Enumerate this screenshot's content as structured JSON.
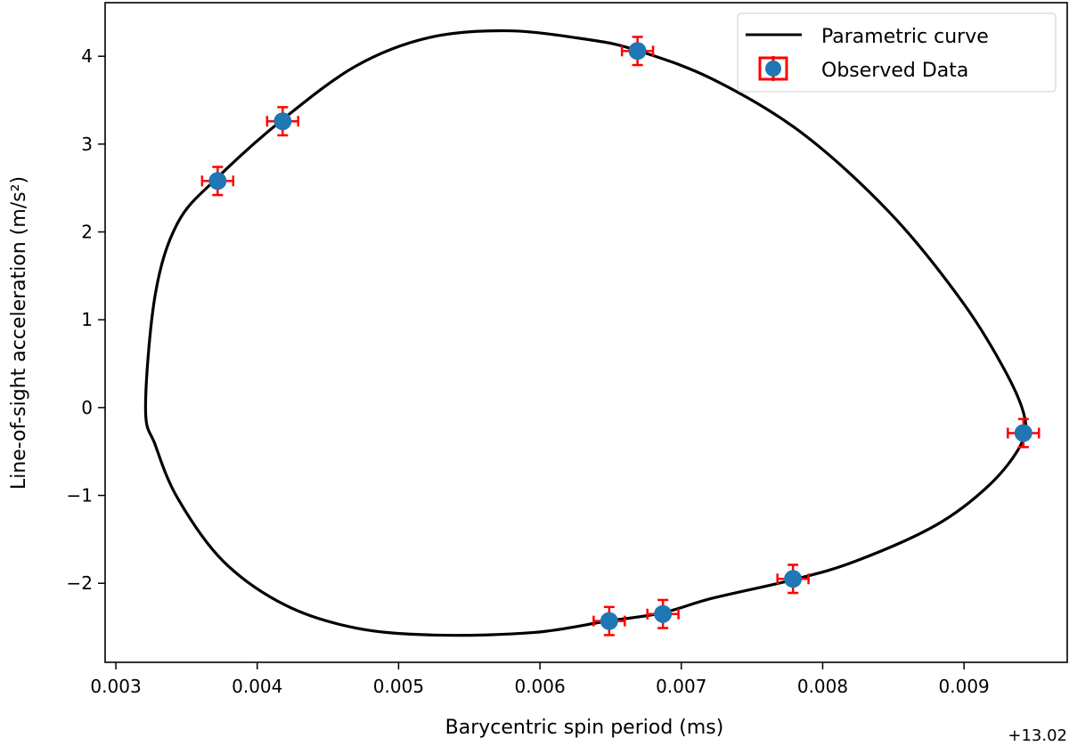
{
  "chart_data": {
    "type": "scatter",
    "title": "",
    "xlabel": "Barycentric spin period (ms)",
    "ylabel": "Line-of-sight acceleration (m/s²)",
    "x_offset_label": "+13.02",
    "xlim": [
      0.002924,
      0.00973
    ],
    "ylim": [
      -2.9,
      4.61
    ],
    "x_ticks": [
      0.003,
      0.004,
      0.005,
      0.006,
      0.007,
      0.008,
      0.009
    ],
    "x_tick_labels": [
      "0.003",
      "0.004",
      "0.005",
      "0.006",
      "0.007",
      "0.008",
      "0.009"
    ],
    "y_ticks": [
      -2,
      -1,
      0,
      1,
      2,
      3,
      4
    ],
    "y_tick_labels": [
      "−2",
      "−1",
      "0",
      "1",
      "2",
      "3",
      "4"
    ],
    "grid": false,
    "legend_placement": "top-right",
    "series": [
      {
        "name": "Parametric curve",
        "kind": "line",
        "color": "#000000",
        "closed": true,
        "x": [
          0.00321,
          0.00328,
          0.00344,
          0.00372,
          0.00418,
          0.0047,
          0.00521,
          0.00577,
          0.00634,
          0.00668,
          0.00722,
          0.00785,
          0.00848,
          0.00899,
          0.0093,
          0.00943,
          0.0094,
          0.00918,
          0.0088,
          0.00823,
          0.00779,
          0.00722,
          0.00686,
          0.00648,
          0.00596,
          0.00527,
          0.0047,
          0.0042,
          0.00376,
          0.00344,
          0.00328
        ],
        "y": [
          0,
          1.3,
          2.11,
          2.62,
          3.28,
          3.89,
          4.21,
          4.29,
          4.19,
          4.07,
          3.74,
          3.13,
          2.21,
          1.2,
          0.39,
          -0.12,
          -0.43,
          -0.88,
          -1.34,
          -1.75,
          -1.96,
          -2.17,
          -2.34,
          -2.43,
          -2.56,
          -2.59,
          -2.51,
          -2.25,
          -1.75,
          -1.04,
          -0.43
        ]
      },
      {
        "name": "Observed Data",
        "kind": "errorbar",
        "color": "#1f77b4",
        "error_color": "#ff0000",
        "x": [
          0.00372,
          0.00418,
          0.00669,
          0.00942,
          0.00779,
          0.00687,
          0.00649
        ],
        "y": [
          2.58,
          3.26,
          4.06,
          -0.29,
          -1.95,
          -2.35,
          -2.43
        ],
        "x_err": 0.00011,
        "y_err": 0.16
      }
    ]
  }
}
